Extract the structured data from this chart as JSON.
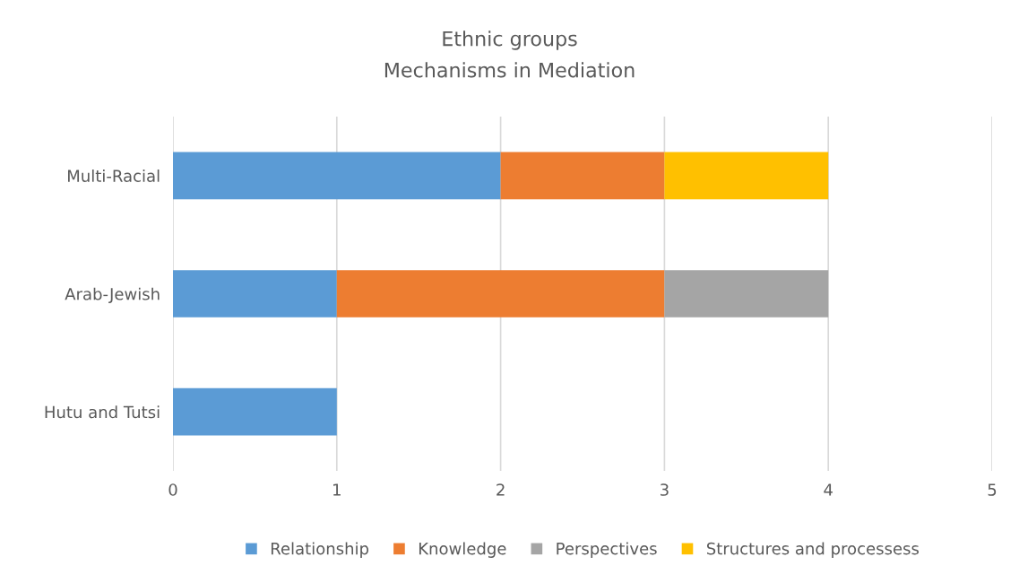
{
  "chart_data": {
    "type": "bar",
    "orientation": "horizontal",
    "stacked": true,
    "title": "Ethnic groups",
    "subtitle": "Mechanisms in Mediation",
    "categories": [
      "Multi-Racial",
      "Arab-Jewish",
      "Hutu and Tutsi"
    ],
    "series": [
      {
        "name": "Relationship",
        "color": "#5b9bd5",
        "values": [
          2,
          1,
          1
        ]
      },
      {
        "name": "Knowledge",
        "color": "#ed7d31",
        "values": [
          1,
          2,
          null
        ]
      },
      {
        "name": "Perspectives",
        "color": "#a5a5a5",
        "values": [
          null,
          1,
          null
        ]
      },
      {
        "name": "Structures and processess",
        "color": "#ffc000",
        "values": [
          1,
          null,
          null
        ]
      }
    ],
    "xlim": [
      0,
      5
    ],
    "xticks": [
      0,
      1,
      2,
      3,
      4,
      5
    ],
    "grid": "x",
    "legend": "bottom"
  }
}
